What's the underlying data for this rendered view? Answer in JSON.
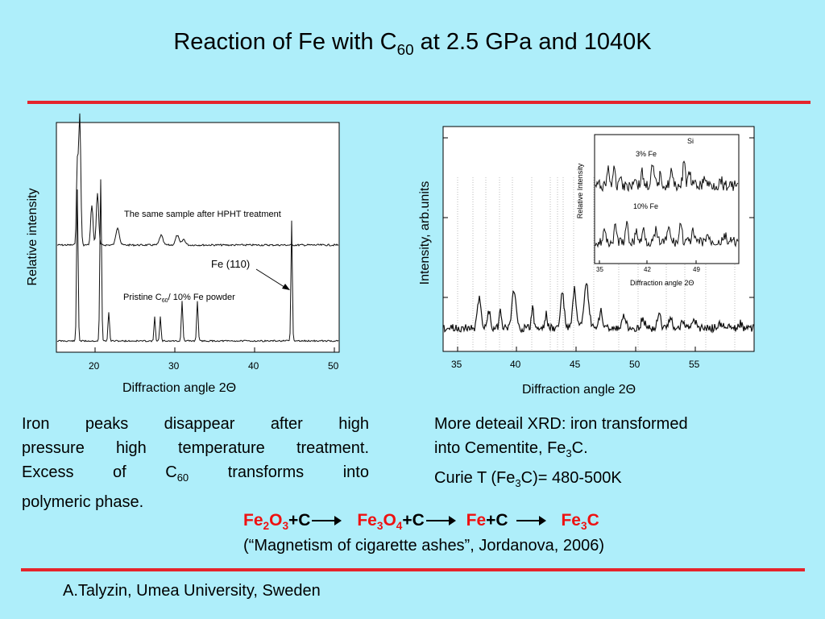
{
  "title": {
    "prefix": "Reaction of Fe with C",
    "sub": "60",
    "suffix": " at 2.5 GPa and 1040K"
  },
  "left_chart": {
    "ylabel": "Relative intensity",
    "xlabel": "Diffraction angle 2Θ",
    "xticks": [
      "20",
      "30",
      "40",
      "50"
    ],
    "annotation_top": "The same sample after  HPHT treatment",
    "annotation_fe": "Fe (110)",
    "annotation_bottom_prefix": "Pristine C",
    "annotation_bottom_sub": "60",
    "annotation_bottom_suffix": "/ 10% Fe powder"
  },
  "right_chart": {
    "ylabel": "Intensity, arb.units",
    "xlabel": "Diffraction angle 2Θ",
    "xticks": [
      "35",
      "40",
      "45",
      "50",
      "55"
    ],
    "inset": {
      "ylabel": "Relative Intensity",
      "xlabel": "Diffraction angle 2Θ",
      "xticks": [
        "35",
        "42",
        "49"
      ],
      "label_si": "Si",
      "label_3fe": "3% Fe",
      "label_10fe": "10% Fe"
    }
  },
  "chart_data": [
    {
      "type": "line",
      "xlim": [
        15,
        51
      ],
      "series": [
        {
          "peaks_x": [
            17.7,
            18.2,
            19.5,
            20.4,
            22.8,
            28.3,
            30.4,
            31.2
          ]
        },
        {
          "peaks_x": [
            17.6,
            21.0,
            21.9,
            27.7,
            28.4,
            31.0,
            32.9,
            44.7
          ]
        }
      ]
    },
    {
      "type": "line",
      "xlim": [
        34,
        59.5
      ],
      "series": [
        {
          "peaks_x": [
            36.8,
            37.8,
            39.6,
            43.7,
            44.9,
            45.9,
            49.2,
            51.9
          ]
        }
      ]
    }
  ],
  "left_text": {
    "line1": [
      "Iron",
      "peaks",
      "disappear",
      "after",
      "high"
    ],
    "line2": "pressure high temperature treatment.",
    "line3": {
      "excess": "Excess",
      "of": "of",
      "c": "C",
      "sub": "60",
      "transforms": "transforms",
      "into": "into"
    },
    "line4": "polymeric phase."
  },
  "right_text": {
    "line1": "More deteail XRD: iron transformed",
    "line2": {
      "prefix": "into Cementite, Fe",
      "sub": "3",
      "suffix": "C."
    },
    "line3": {
      "prefix": "Curie T (Fe",
      "sub": "3",
      "suffix": "C)= 480-500K"
    }
  },
  "reaction": {
    "fe2o3": {
      "a": "Fe",
      "a_sub": "2",
      "b": "O",
      "b_sub": "3"
    },
    "plus_c1": "+C",
    "fe3o4": {
      "a": "Fe",
      "a_sub": "3",
      "b": "O",
      "b_sub": "4"
    },
    "plus_c2": "+C",
    "fe": "Fe",
    "plus_c3": "+C",
    "fe3c": {
      "a": "Fe",
      "a_sub": "3",
      "b": "C"
    }
  },
  "citation": "(“Magnetism of cigarette ashes”, Jordanova, 2006)",
  "footer": "A.Talyzin, Umea University, Sweden",
  "colors": {
    "background": "#aeeefa",
    "accent_red": "#e5242b",
    "reaction_red": "#ee1111"
  }
}
